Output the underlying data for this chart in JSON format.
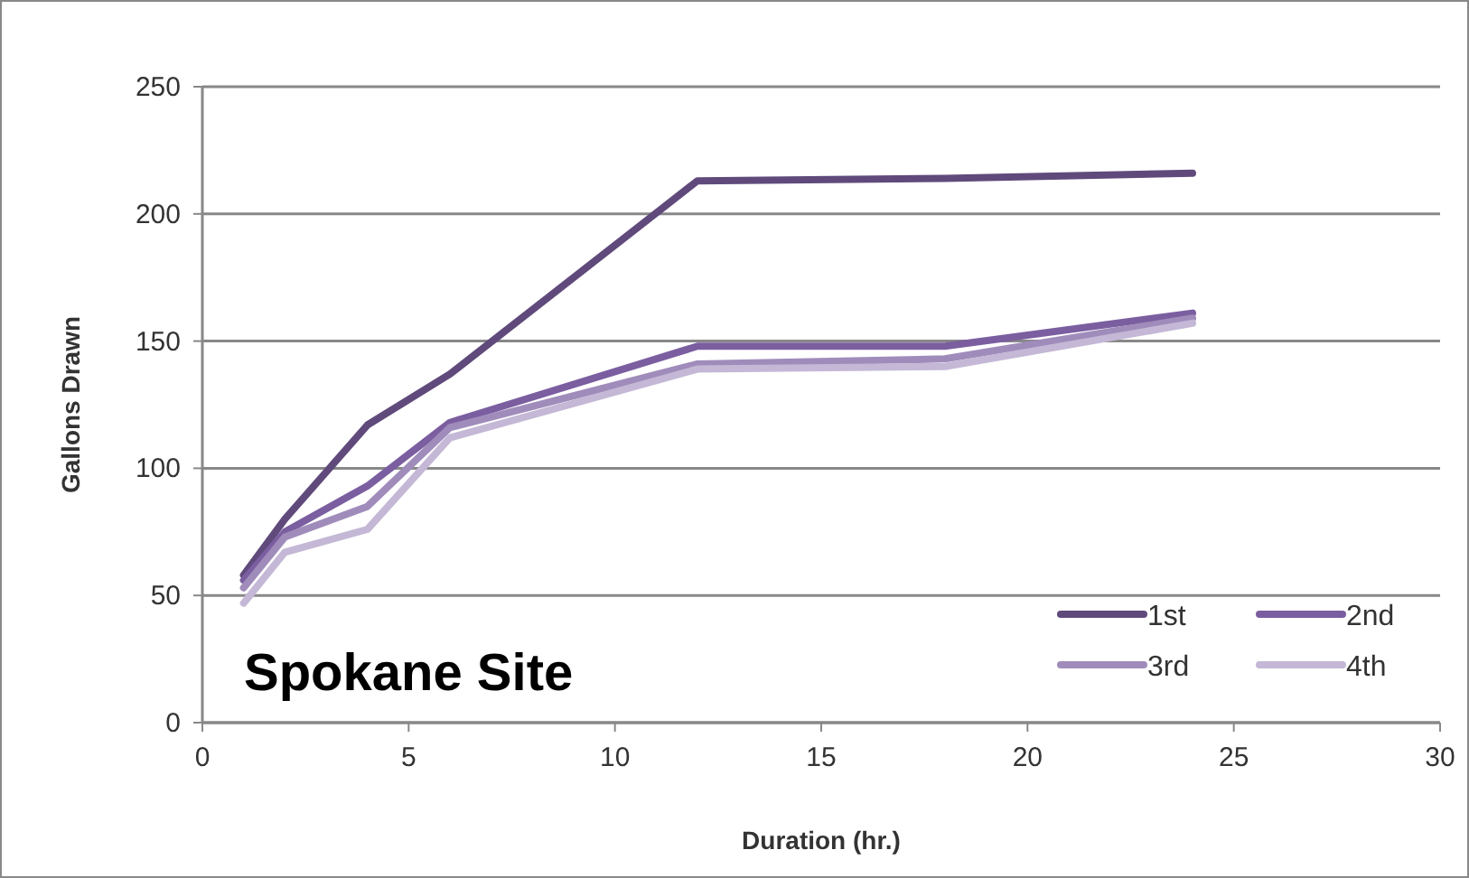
{
  "chart_data": {
    "type": "line",
    "xlabel": "Duration (hr.)",
    "ylabel": "Gallons Drawn",
    "annotations": [
      "Spokane Site"
    ],
    "x": [
      1,
      2,
      4,
      6,
      12,
      18,
      24
    ],
    "series": [
      {
        "name": "1st",
        "color": "#604a7b",
        "values": [
          58,
          80,
          117,
          137,
          213,
          214,
          216
        ]
      },
      {
        "name": "2nd",
        "color": "#7b5ea0",
        "values": [
          56,
          75,
          93,
          118,
          148,
          148,
          161
        ]
      },
      {
        "name": "3rd",
        "color": "#a08cbb",
        "values": [
          53,
          73,
          85,
          116,
          141,
          143,
          159
        ]
      },
      {
        "name": "4th",
        "color": "#c4b8d6",
        "values": [
          47,
          67,
          76,
          112,
          139,
          140,
          157
        ]
      }
    ],
    "xlim": [
      0,
      30
    ],
    "xticks": [
      0,
      5,
      10,
      15,
      20,
      25,
      30
    ],
    "ylim": [
      0,
      250
    ],
    "yticks": [
      0,
      50,
      100,
      150,
      200,
      250
    ],
    "grid": "y",
    "legend": "bottom right",
    "marker": "none",
    "line_style": "solid"
  }
}
